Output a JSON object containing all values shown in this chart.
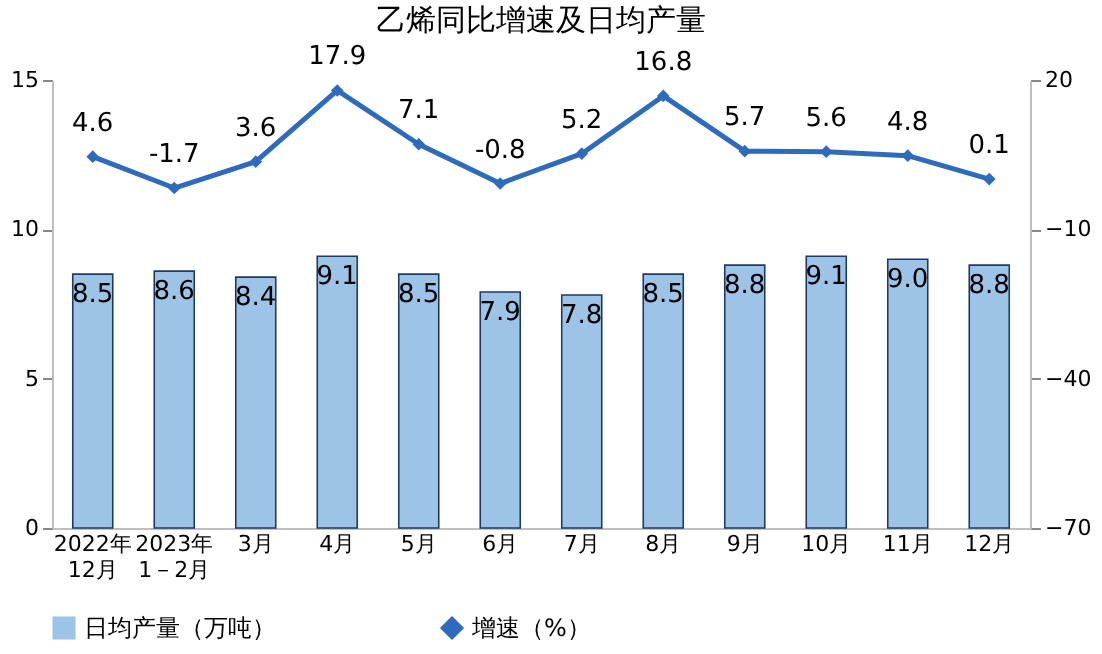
{
  "chart_data": {
    "type": "bar",
    "title": "乙烯同比增速及日均产量",
    "categories": [
      "2022年\n12月",
      "2023年\n1－2月",
      "3月",
      "4月",
      "5月",
      "6月",
      "7月",
      "8月",
      "9月",
      "10月",
      "11月",
      "12月"
    ],
    "series": [
      {
        "name": "日均产量（万吨）",
        "color": "#9dc3e6",
        "values": [
          8.5,
          8.6,
          8.4,
          9.1,
          8.5,
          7.9,
          7.8,
          8.5,
          8.8,
          9.1,
          9.0,
          8.8
        ],
        "value_labels": [
          "8.5",
          "8.6",
          "8.4",
          "9.1",
          "8.5",
          "7.9",
          "7.8",
          "8.5",
          "8.8",
          "9.1",
          "9.0",
          "8.8"
        ]
      },
      {
        "name": "增速（%）",
        "type": "line",
        "axis": "y2",
        "color": "#2e6bbd",
        "marker": "diamond",
        "values": [
          4.6,
          -1.7,
          3.6,
          17.9,
          7.1,
          -0.8,
          5.2,
          16.8,
          5.7,
          5.6,
          4.8,
          0.1
        ]
      }
    ],
    "ylim": [
      0,
      15
    ],
    "yticks": [
      0,
      5,
      10,
      15
    ],
    "y2lim": [
      -70,
      20
    ],
    "y2ticks": [
      -70,
      -40,
      -10,
      20
    ],
    "data_labels": true,
    "grid": false,
    "legend": "bottom"
  }
}
